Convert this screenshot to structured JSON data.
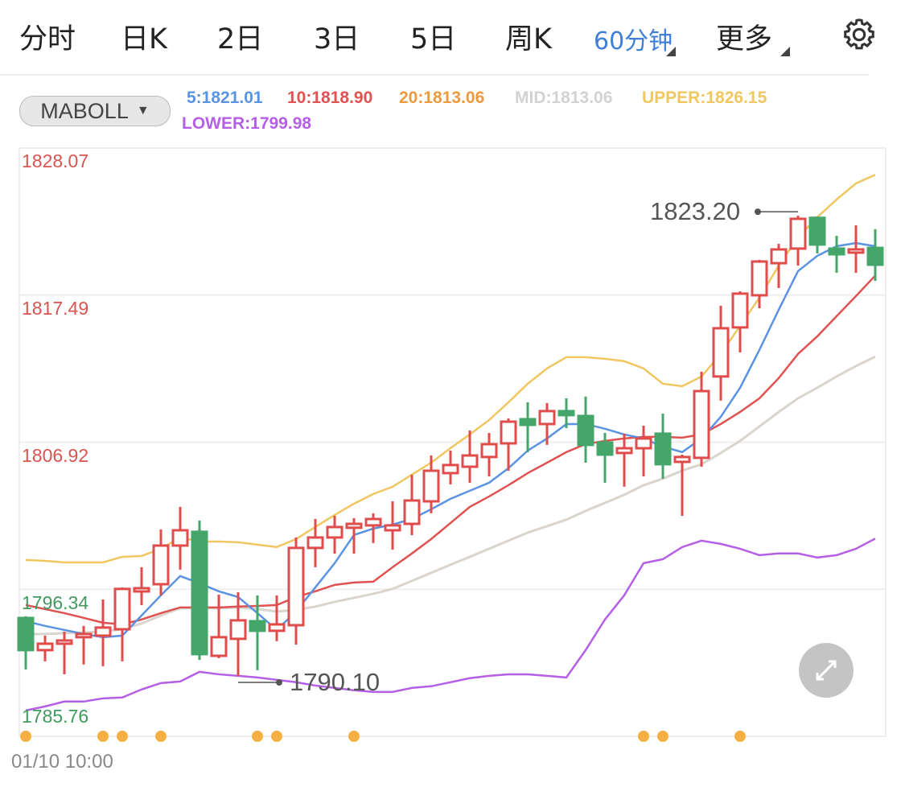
{
  "tabs": [
    {
      "label": "分时"
    },
    {
      "label": "日K"
    },
    {
      "label": "2日"
    },
    {
      "label": "3日"
    },
    {
      "label": "5日"
    },
    {
      "label": "周K"
    },
    {
      "label": "60分钟",
      "active": true
    },
    {
      "label": "更多"
    }
  ],
  "settings_icon": "gear-icon",
  "indicator_selector": {
    "label": "MABOLL",
    "icon": "caret-down-icon"
  },
  "indicators": {
    "ma5": "5:1821.01",
    "ma10": "10:1818.90",
    "ma20": "20:1813.06",
    "mid": "MID:1813.06",
    "upper": "UPPER:1826.15",
    "lower": "LOWER:1799.98"
  },
  "colors": {
    "up": "#e04b4b",
    "down": "#45a66a",
    "ma5": "#5b93e3",
    "ma10": "#e05252",
    "ma20": "#eb9a3e",
    "mid": "#d9d4cc",
    "upper": "#f0c660",
    "lower": "#b55ee6",
    "active_tab": "#3f7fd6",
    "marker": "#f4b042"
  },
  "expand_icon": "expand-arrows-icon",
  "chart_data": {
    "type": "candlestick",
    "title": "",
    "interval": "60分钟",
    "x_label_first": "01/10 10:00",
    "ylim": [
      1785.76,
      1828.07
    ],
    "y_ticks": [
      "1828.07",
      "1817.49",
      "1806.92",
      "1796.34",
      "1785.76"
    ],
    "max_annotation": {
      "label": "1823.20",
      "index": 40,
      "value": 1823.2
    },
    "min_annotation": {
      "label": "1790.10",
      "index": 11,
      "value": 1790.1
    },
    "candles": [
      [
        1794.27,
        1794.39,
        1790.57,
        1791.96
      ],
      [
        1791.96,
        1793.0,
        1791.15,
        1792.42
      ],
      [
        1792.42,
        1793.29,
        1790.22,
        1792.65
      ],
      [
        1792.89,
        1793.7,
        1790.92,
        1793.12
      ],
      [
        1793.0,
        1795.6,
        1790.8,
        1793.58
      ],
      [
        1793.46,
        1796.47,
        1791.15,
        1796.36
      ],
      [
        1796.18,
        1797.92,
        1795.2,
        1796.41
      ],
      [
        1796.7,
        1800.64,
        1795.89,
        1799.48
      ],
      [
        1799.48,
        1802.26,
        1797.75,
        1800.58
      ],
      [
        1800.47,
        1801.28,
        1791.26,
        1791.67
      ],
      [
        1791.55,
        1795.95,
        1791.38,
        1792.89
      ],
      [
        1792.77,
        1796.13,
        1790.1,
        1794.1
      ],
      [
        1794.04,
        1795.89,
        1790.51,
        1793.35
      ],
      [
        1793.35,
        1795.89,
        1792.6,
        1793.81
      ],
      [
        1793.75,
        1800.06,
        1792.36,
        1799.31
      ],
      [
        1799.31,
        1801.39,
        1797.92,
        1800.06
      ],
      [
        1800.06,
        1801.62,
        1798.9,
        1800.81
      ],
      [
        1800.76,
        1801.45,
        1798.9,
        1801.04
      ],
      [
        1800.93,
        1801.8,
        1799.66,
        1801.39
      ],
      [
        1800.58,
        1802.66,
        1799.19,
        1800.93
      ],
      [
        1801.04,
        1804.57,
        1800.23,
        1802.72
      ],
      [
        1802.66,
        1805.96,
        1801.8,
        1804.86
      ],
      [
        1804.69,
        1806.31,
        1803.88,
        1805.27
      ],
      [
        1805.15,
        1807.76,
        1804.0,
        1805.96
      ],
      [
        1805.85,
        1807.58,
        1804.46,
        1806.77
      ],
      [
        1806.83,
        1808.63,
        1804.86,
        1808.39
      ],
      [
        1808.57,
        1809.78,
        1806.19,
        1808.16
      ],
      [
        1808.22,
        1809.73,
        1806.72,
        1809.15
      ],
      [
        1809.15,
        1810.07,
        1807.93,
        1808.86
      ],
      [
        1808.8,
        1810.19,
        1805.44,
        1806.72
      ],
      [
        1806.89,
        1807.58,
        1804.0,
        1806.02
      ],
      [
        1806.14,
        1807.53,
        1803.71,
        1806.48
      ],
      [
        1806.48,
        1808.1,
        1804.46,
        1807.18
      ],
      [
        1807.53,
        1808.97,
        1804.29,
        1805.33
      ],
      [
        1805.5,
        1806.02,
        1801.62,
        1805.85
      ],
      [
        1805.79,
        1811.98,
        1805.15,
        1810.59
      ],
      [
        1811.64,
        1816.73,
        1809.9,
        1815.11
      ],
      [
        1815.17,
        1817.77,
        1813.37,
        1817.6
      ],
      [
        1817.48,
        1820.03,
        1816.55,
        1819.91
      ],
      [
        1819.79,
        1821.18,
        1818.0,
        1820.78
      ],
      [
        1820.84,
        1823.2,
        1819.62,
        1822.98
      ],
      [
        1823.05,
        1823.15,
        1820.49,
        1821.13
      ],
      [
        1820.84,
        1821.76,
        1819.1,
        1820.43
      ],
      [
        1820.55,
        1822.51,
        1819.1,
        1820.78
      ],
      [
        1820.89,
        1822.23,
        1818.52,
        1819.68
      ]
    ],
    "candle_fields": [
      "open",
      "high",
      "low",
      "close"
    ],
    "series": [
      {
        "name": "MA5",
        "key": "ma5",
        "values": [
          1794.04,
          1793.7,
          1793.41,
          1793.12,
          1792.89,
          1793.0,
          1794.45,
          1795.9,
          1797.29,
          1796.76,
          1796.19,
          1795.78,
          1794.62,
          1793.41,
          1794.74,
          1796.47,
          1798.21,
          1800.24,
          1800.7,
          1800.99,
          1801.39,
          1802.09,
          1802.84,
          1803.42,
          1804.0,
          1805.04,
          1806.31,
          1807.18,
          1808.22,
          1808.22,
          1807.88,
          1807.47,
          1807.18,
          1806.6,
          1806.2,
          1807.18,
          1808.74,
          1810.83,
          1813.55,
          1816.44,
          1819.22,
          1820.32,
          1821.01,
          1821.24,
          1821.01
        ]
      },
      {
        "name": "MA10",
        "key": "ma10",
        "values": [
          1795.2,
          1794.91,
          1794.62,
          1794.28,
          1793.93,
          1793.81,
          1794.16,
          1794.62,
          1795.03,
          1795.03,
          1795.03,
          1795.09,
          1795.14,
          1795.2,
          1795.78,
          1796.19,
          1796.65,
          1796.82,
          1796.88,
          1797.92,
          1798.91,
          1799.95,
          1801.1,
          1802.26,
          1803.01,
          1803.82,
          1804.69,
          1805.44,
          1806.2,
          1806.78,
          1807.01,
          1807.18,
          1807.3,
          1807.3,
          1807.24,
          1807.47,
          1808.22,
          1809.09,
          1810.07,
          1811.52,
          1813.26,
          1814.53,
          1815.98,
          1817.42,
          1818.9
        ]
      },
      {
        "name": "MID",
        "key": "mid",
        "values": [
          1793.12,
          1793.12,
          1793.18,
          1793.23,
          1793.29,
          1793.47,
          1793.87,
          1794.45,
          1794.97,
          1794.97,
          1794.97,
          1795.03,
          1794.91,
          1794.74,
          1794.85,
          1795.09,
          1795.43,
          1795.72,
          1796.01,
          1796.36,
          1796.94,
          1797.52,
          1798.1,
          1798.67,
          1799.25,
          1799.83,
          1800.41,
          1800.87,
          1801.34,
          1801.97,
          1802.55,
          1803.13,
          1803.82,
          1804.29,
          1804.87,
          1805.33,
          1806.14,
          1807.01,
          1808.05,
          1809.09,
          1810.07,
          1810.83,
          1811.64,
          1812.39,
          1813.06
        ]
      },
      {
        "name": "UPPER",
        "key": "upper",
        "values": [
          1798.44,
          1798.38,
          1798.27,
          1798.27,
          1798.27,
          1798.67,
          1798.73,
          1799.25,
          1800.06,
          1799.77,
          1799.77,
          1799.72,
          1799.54,
          1799.37,
          1799.95,
          1800.82,
          1801.68,
          1802.49,
          1803.19,
          1803.71,
          1804.58,
          1805.44,
          1806.49,
          1807.47,
          1808.51,
          1809.78,
          1811.12,
          1812.22,
          1813.03,
          1813.03,
          1812.91,
          1812.74,
          1812.22,
          1811.12,
          1810.94,
          1811.64,
          1813.26,
          1815.28,
          1817.31,
          1819.62,
          1821.65,
          1823.1,
          1824.37,
          1825.53,
          1826.15
        ]
      },
      {
        "name": "LOWER",
        "key": "lower",
        "values": [
          1787.62,
          1787.91,
          1788.26,
          1788.26,
          1788.49,
          1788.55,
          1789.13,
          1789.59,
          1789.7,
          1790.4,
          1790.22,
          1790.11,
          1789.99,
          1789.82,
          1789.65,
          1789.41,
          1789.24,
          1789.07,
          1788.95,
          1788.95,
          1789.24,
          1789.36,
          1789.65,
          1789.94,
          1790.11,
          1790.22,
          1790.22,
          1790.11,
          1789.99,
          1791.96,
          1794.16,
          1795.9,
          1798.21,
          1798.5,
          1799.37,
          1799.83,
          1799.6,
          1799.25,
          1798.79,
          1798.91,
          1798.91,
          1798.62,
          1798.79,
          1799.25,
          1799.98
        ]
      }
    ],
    "event_markers": [
      0,
      4,
      5,
      7,
      12,
      13,
      17,
      32,
      33,
      37
    ],
    "grid": true
  }
}
